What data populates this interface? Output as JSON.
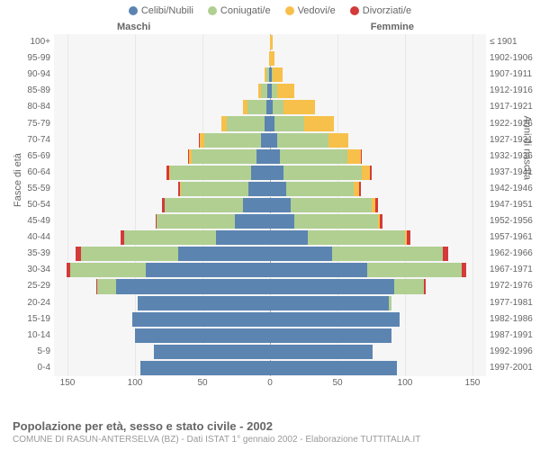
{
  "legend": {
    "items": [
      {
        "label": "Celibi/Nubili",
        "color": "#5b84b1"
      },
      {
        "label": "Coniugati/e",
        "color": "#b0cf91"
      },
      {
        "label": "Vedovi/e",
        "color": "#f7c04a"
      },
      {
        "label": "Divorziati/e",
        "color": "#d43a3a"
      }
    ]
  },
  "gender": {
    "male": "Maschi",
    "female": "Femmine"
  },
  "axis": {
    "left_title": "Fasce di età",
    "right_title": "Anni di nascita",
    "xmax": 160,
    "xticks": [
      150,
      100,
      50,
      0,
      50,
      100,
      150
    ]
  },
  "age_labels": [
    "100+",
    "95-99",
    "90-94",
    "85-89",
    "80-84",
    "75-79",
    "70-74",
    "65-69",
    "60-64",
    "55-59",
    "50-54",
    "45-49",
    "40-44",
    "35-39",
    "30-34",
    "25-29",
    "20-24",
    "15-19",
    "10-14",
    "5-9",
    "0-4"
  ],
  "birth_labels": [
    "≤ 1901",
    "1902-1906",
    "1907-1911",
    "1912-1916",
    "1917-1921",
    "1922-1926",
    "1927-1931",
    "1932-1936",
    "1937-1941",
    "1942-1946",
    "1947-1951",
    "1952-1956",
    "1957-1961",
    "1962-1966",
    "1967-1971",
    "1972-1976",
    "1977-1981",
    "1982-1986",
    "1987-1991",
    "1992-1996",
    "1997-2001"
  ],
  "colors": {
    "celibi": "#5b84b1",
    "coniugati": "#b0cf91",
    "vedovi": "#f7c04a",
    "divorziati": "#d43a3a",
    "plot_bg": "#f6f6f6",
    "grid": "#e8e8e8"
  },
  "rows": [
    {
      "m": [
        0,
        0,
        0,
        0
      ],
      "f": [
        0,
        0,
        2,
        0
      ]
    },
    {
      "m": [
        0,
        0,
        1,
        0
      ],
      "f": [
        0,
        0,
        3,
        0
      ]
    },
    {
      "m": [
        1,
        2,
        1,
        0
      ],
      "f": [
        1,
        1,
        7,
        0
      ]
    },
    {
      "m": [
        2,
        5,
        2,
        0
      ],
      "f": [
        1,
        4,
        13,
        0
      ]
    },
    {
      "m": [
        3,
        14,
        3,
        0
      ],
      "f": [
        2,
        8,
        23,
        0
      ]
    },
    {
      "m": [
        4,
        28,
        4,
        0
      ],
      "f": [
        3,
        22,
        22,
        0
      ]
    },
    {
      "m": [
        7,
        42,
        3,
        1
      ],
      "f": [
        5,
        38,
        15,
        0
      ]
    },
    {
      "m": [
        10,
        48,
        2,
        1
      ],
      "f": [
        7,
        50,
        10,
        1
      ]
    },
    {
      "m": [
        14,
        60,
        1,
        2
      ],
      "f": [
        10,
        58,
        6,
        1
      ]
    },
    {
      "m": [
        16,
        50,
        1,
        1
      ],
      "f": [
        12,
        50,
        4,
        1
      ]
    },
    {
      "m": [
        20,
        58,
        0,
        2
      ],
      "f": [
        15,
        60,
        3,
        2
      ]
    },
    {
      "m": [
        26,
        58,
        0,
        1
      ],
      "f": [
        18,
        62,
        1,
        2
      ]
    },
    {
      "m": [
        40,
        68,
        0,
        3
      ],
      "f": [
        28,
        72,
        1,
        3
      ]
    },
    {
      "m": [
        68,
        72,
        0,
        4
      ],
      "f": [
        46,
        82,
        0,
        4
      ]
    },
    {
      "m": [
        92,
        56,
        0,
        3
      ],
      "f": [
        72,
        70,
        0,
        3
      ]
    },
    {
      "m": [
        114,
        14,
        0,
        1
      ],
      "f": [
        92,
        22,
        0,
        1
      ]
    },
    {
      "m": [
        98,
        0,
        0,
        0
      ],
      "f": [
        88,
        2,
        0,
        0
      ]
    },
    {
      "m": [
        102,
        0,
        0,
        0
      ],
      "f": [
        96,
        0,
        0,
        0
      ]
    },
    {
      "m": [
        100,
        0,
        0,
        0
      ],
      "f": [
        90,
        0,
        0,
        0
      ]
    },
    {
      "m": [
        86,
        0,
        0,
        0
      ],
      "f": [
        76,
        0,
        0,
        0
      ]
    },
    {
      "m": [
        96,
        0,
        0,
        0
      ],
      "f": [
        94,
        0,
        0,
        0
      ]
    }
  ],
  "footer": {
    "title": "Popolazione per età, sesso e stato civile - 2002",
    "subtitle": "COMUNE DI RASUN-ANTERSELVA (BZ) - Dati ISTAT 1° gennaio 2002 - Elaborazione TUTTITALIA.IT"
  }
}
